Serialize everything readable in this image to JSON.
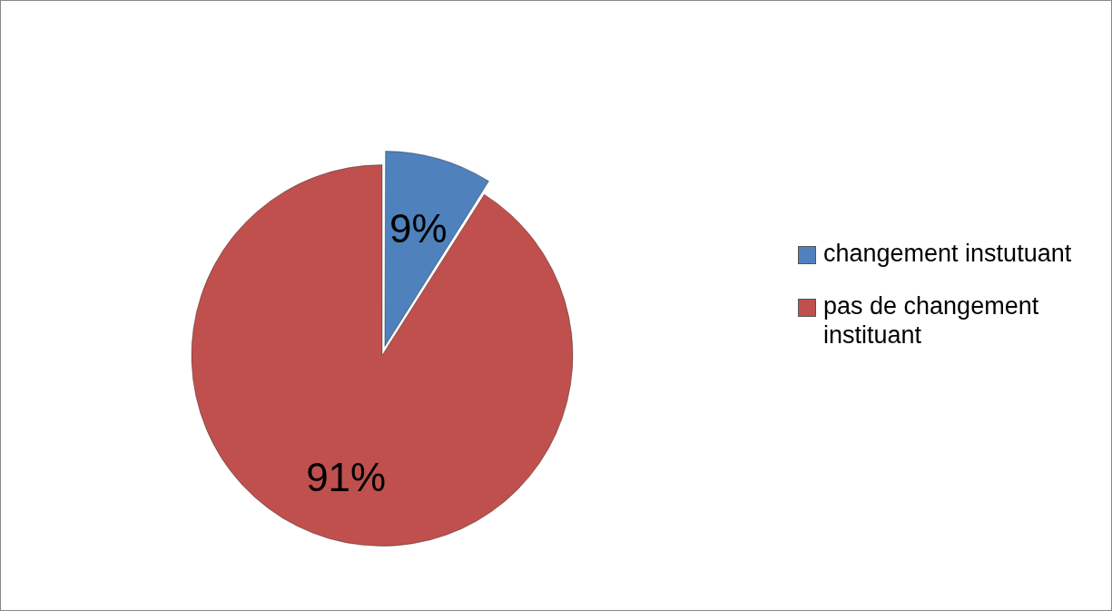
{
  "chart_data": {
    "type": "pie",
    "categories": [
      "changement instutuant",
      "pas de changement instituant"
    ],
    "values": [
      9,
      91
    ],
    "colors": [
      "#4f81bd",
      "#c0504d"
    ],
    "value_labels": [
      "9%",
      "91%"
    ],
    "legend": "right"
  }
}
